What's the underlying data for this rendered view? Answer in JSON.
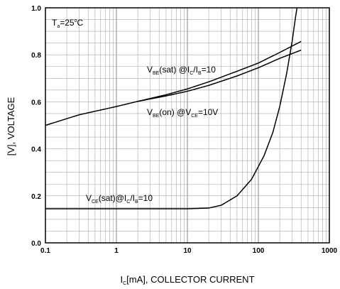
{
  "chart_data": {
    "type": "line",
    "x_scale": "log",
    "xlim": [
      0.1,
      1000
    ],
    "ylim": [
      0.0,
      1.0
    ],
    "x_ticks": [
      "0.1",
      "1",
      "10",
      "100",
      "1000"
    ],
    "y_ticks": [
      "0.0",
      "0.2",
      "0.4",
      "0.6",
      "0.8",
      "1.0"
    ],
    "ylabel": "[V], VOLTAGE",
    "xlabel": {
      "main": "I",
      "sub": "C",
      "rest": "[mA], COLLECTOR CURRENT"
    },
    "condition": {
      "main": "T",
      "sub": "a",
      "rest": "=25",
      "sup": "o",
      "tail": "C"
    },
    "grid": true,
    "series": [
      {
        "name": "VBE(sat) @IC/IB=10",
        "label_parts": [
          "V",
          "BE",
          "(sat)  @I",
          "C",
          "/I",
          "B",
          "=10"
        ],
        "x": [
          0.1,
          0.3,
          1,
          2,
          5,
          10,
          20,
          50,
          100,
          200,
          400
        ],
        "y": [
          0.5,
          0.545,
          0.58,
          0.602,
          0.63,
          0.655,
          0.685,
          0.73,
          0.765,
          0.81,
          0.857
        ]
      },
      {
        "name": "VBE(on) @VCE=10V",
        "label_parts": [
          "V",
          "BE",
          "(on)  @V",
          "CE",
          "=10V"
        ],
        "x": [
          2,
          5,
          10,
          20,
          50,
          100,
          200,
          400
        ],
        "y": [
          0.602,
          0.625,
          0.645,
          0.67,
          0.71,
          0.745,
          0.785,
          0.82
        ]
      },
      {
        "name": "VCE(sat)@IC/IB=10",
        "label_parts": [
          "V",
          "CE",
          "(sat)@I",
          "C",
          "/I",
          "B",
          "=10"
        ],
        "x": [
          0.1,
          1,
          10,
          20,
          30,
          50,
          80,
          120,
          160,
          200,
          250,
          300,
          330,
          350
        ],
        "y": [
          0.145,
          0.145,
          0.145,
          0.148,
          0.16,
          0.2,
          0.27,
          0.37,
          0.47,
          0.58,
          0.72,
          0.86,
          0.95,
          1.0
        ]
      }
    ]
  }
}
